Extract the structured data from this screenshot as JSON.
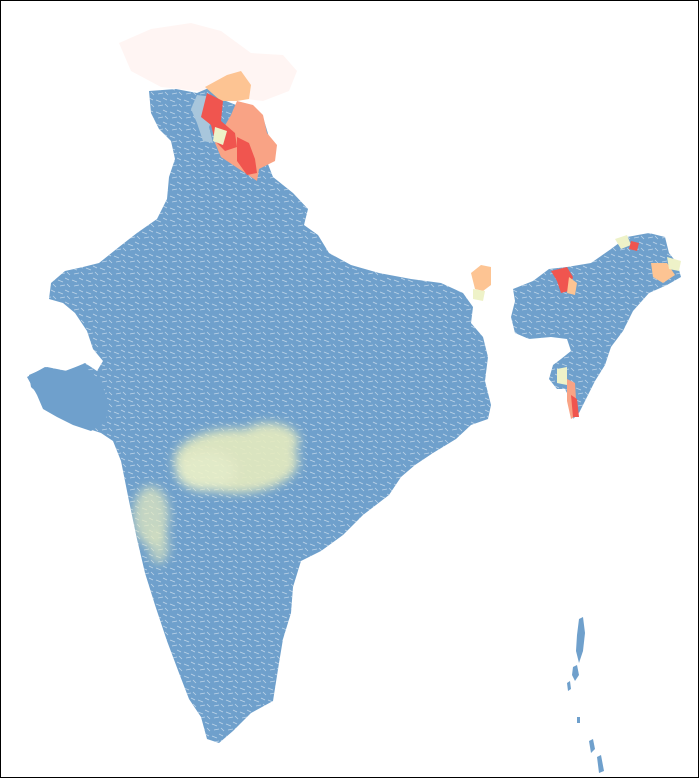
{
  "map": {
    "title": "",
    "region": "India",
    "colors": {
      "background": "#ffffff",
      "border": "#000000",
      "base": "#6fa0cc",
      "light_blue": "#a8c6dc",
      "pale_yellow": "#eef2c8",
      "yellow": "#e6ebbf",
      "peach": "#fdc493",
      "salmon": "#f9a385",
      "red": "#f0554f",
      "faint_pink": "#fff5f3",
      "boundary": "#ffffff"
    }
  }
}
